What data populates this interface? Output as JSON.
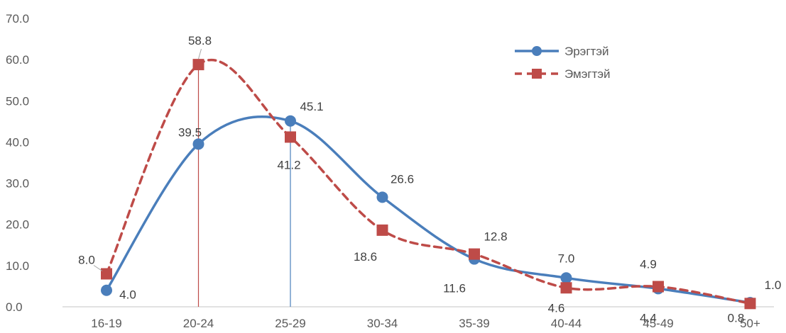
{
  "chart_data": {
    "type": "line",
    "categories": [
      "16-19",
      "20-24",
      "25-29",
      "30-34",
      "35-39",
      "40-44",
      "45-49",
      "50+"
    ],
    "ylim": [
      0,
      70
    ],
    "yticks": [
      "0.0",
      "10.0",
      "20.0",
      "30.0",
      "40.0",
      "50.0",
      "60.0",
      "70.0"
    ],
    "legend_position": "top-right",
    "grid": false,
    "series": [
      {
        "name": "Эрэгтэй",
        "values": [
          4.0,
          39.5,
          45.1,
          26.6,
          11.6,
          7.0,
          4.4,
          1.0
        ],
        "labels": [
          "4.0",
          "39.5",
          "45.1",
          "26.6",
          "11.6",
          "7.0",
          "4.4",
          "1.0"
        ],
        "color": "#4a7ebb",
        "line_style": "solid",
        "marker": "circle"
      },
      {
        "name": "Эмэгтэй",
        "values": [
          8.0,
          58.8,
          41.2,
          18.6,
          12.8,
          4.6,
          4.9,
          0.8
        ],
        "labels": [
          "8.0",
          "58.8",
          "41.2",
          "18.6",
          "12.8",
          "4.6",
          "4.9",
          "0.8"
        ],
        "color": "#be4b48",
        "line_style": "dashed",
        "marker": "square"
      }
    ]
  }
}
